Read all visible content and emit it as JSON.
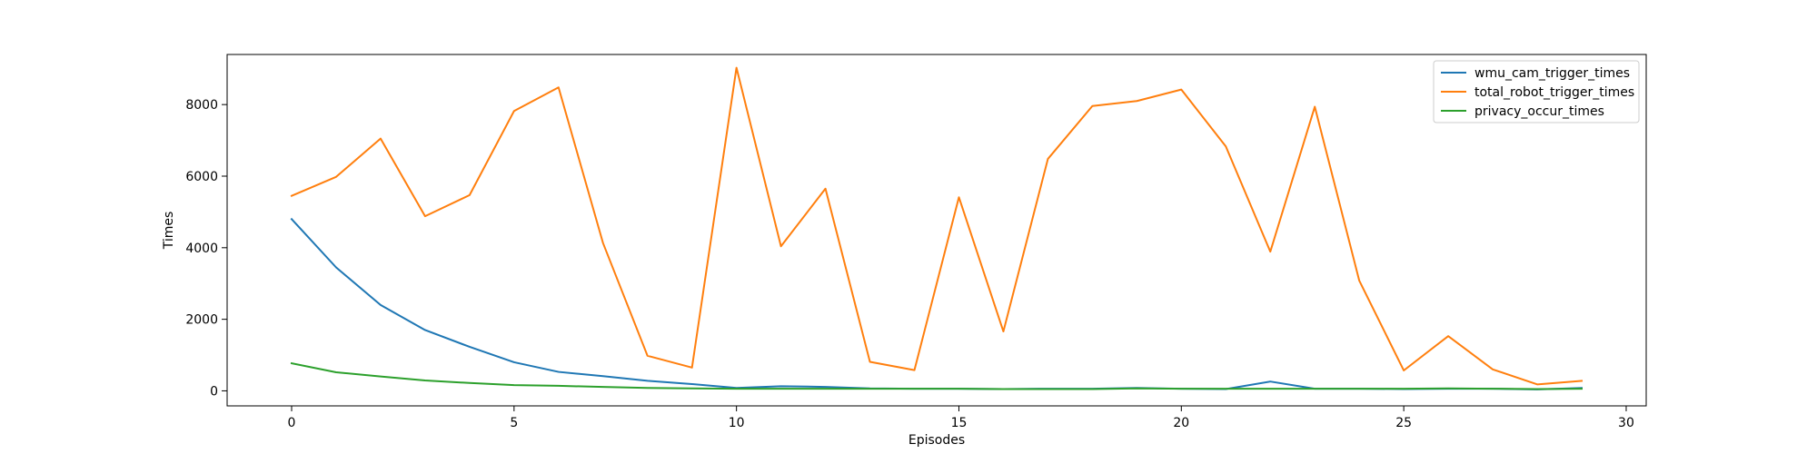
{
  "chart_data": {
    "type": "line",
    "title": "",
    "xlabel": "Episodes",
    "ylabel": "Times",
    "xlim": [
      -1.45,
      30.45
    ],
    "ylim": [
      -420,
      9400
    ],
    "xticks": [
      0,
      5,
      10,
      15,
      20,
      25,
      30
    ],
    "yticks": [
      0,
      2000,
      4000,
      6000,
      8000
    ],
    "grid": false,
    "legend_position": "top-right",
    "x": [
      0,
      1,
      2,
      3,
      4,
      5,
      6,
      7,
      8,
      9,
      10,
      11,
      12,
      13,
      14,
      15,
      16,
      17,
      18,
      19,
      20,
      21,
      22,
      23,
      24,
      25,
      26,
      27,
      28,
      29
    ],
    "series": [
      {
        "name": "wmu_cam_trigger_times",
        "color": "#1f77b4",
        "values": [
          4800,
          3450,
          2400,
          1700,
          1230,
          800,
          530,
          410,
          280,
          190,
          80,
          130,
          110,
          70,
          60,
          60,
          50,
          60,
          60,
          80,
          60,
          50,
          260,
          60,
          60,
          50,
          60,
          60,
          40,
          80
        ]
      },
      {
        "name": "total_robot_trigger_times",
        "color": "#ff7f0e",
        "values": [
          5450,
          5980,
          7050,
          4880,
          5470,
          7820,
          8480,
          4130,
          980,
          650,
          9030,
          4040,
          5650,
          810,
          580,
          5410,
          1660,
          6480,
          7960,
          8100,
          8420,
          6830,
          3890,
          7940,
          3080,
          570,
          1530,
          600,
          180,
          280
        ]
      },
      {
        "name": "privacy_occur_times",
        "color": "#2ca02c",
        "values": [
          770,
          520,
          400,
          290,
          220,
          160,
          140,
          110,
          80,
          70,
          60,
          60,
          60,
          60,
          60,
          60,
          50,
          50,
          50,
          70,
          60,
          60,
          60,
          60,
          60,
          60,
          70,
          60,
          50,
          60
        ]
      }
    ]
  }
}
